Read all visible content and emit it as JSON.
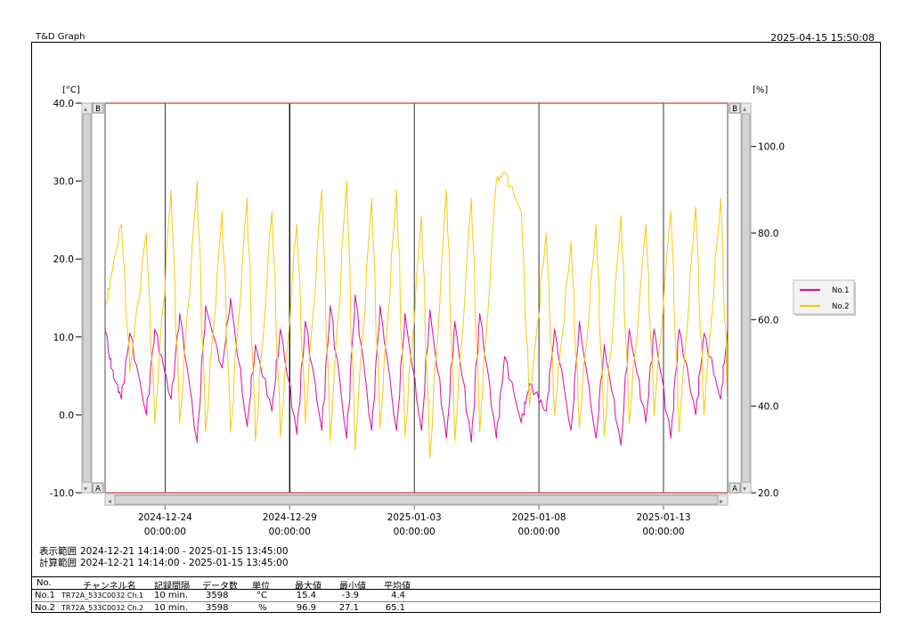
{
  "header": {
    "app_title": "T&D Graph",
    "timestamp": "2025-04-15 15:50:08"
  },
  "chart_data": {
    "type": "line",
    "x_axis": {
      "range": [
        "2024-12-21 14:14:00",
        "2025-01-15 13:45:00"
      ],
      "ticks": [
        {
          "date": "2024-12-24",
          "time": "00:00:00"
        },
        {
          "date": "2024-12-29",
          "time": "00:00:00"
        },
        {
          "date": "2025-01-03",
          "time": "00:00:00"
        },
        {
          "date": "2025-01-08",
          "time": "00:00:00"
        },
        {
          "date": "2025-01-13",
          "time": "00:00:00"
        }
      ]
    },
    "y_left": {
      "unit": "[°C]",
      "ylim": [
        -10,
        40
      ],
      "ticks": [
        "40.0",
        "30.0",
        "20.0",
        "10.0",
        "0.0",
        "-10.0"
      ]
    },
    "y_right": {
      "unit": "[%]",
      "ylim": [
        20,
        110
      ],
      "ticks": [
        "100.0",
        "80.0",
        "60.0",
        "40.0",
        "20.0"
      ]
    },
    "scroll_labels": {
      "top": "B",
      "bottom": "A"
    },
    "legend": {
      "placement": "right"
    },
    "grid": "vertical",
    "series": [
      {
        "name": "No.1",
        "axis": "left",
        "color": "#d9189e",
        "x": [
          "2024-12-21 14:14",
          "2024-12-21 20:00",
          "2024-12-22 06:00",
          "2024-12-22 14:00",
          "2024-12-23 06:00",
          "2024-12-23 14:00",
          "2024-12-24 06:00",
          "2024-12-24 14:00",
          "2024-12-25 07:00",
          "2024-12-25 15:00",
          "2024-12-26 07:00",
          "2024-12-26 15:00",
          "2024-12-27 07:00",
          "2024-12-27 15:00",
          "2024-12-28 07:00",
          "2024-12-28 15:00",
          "2024-12-29 07:00",
          "2024-12-29 15:00",
          "2024-12-30 07:00",
          "2024-12-30 15:00",
          "2024-12-31 07:00",
          "2024-12-31 15:00",
          "2025-01-01 07:00",
          "2025-01-01 15:00",
          "2025-01-02 07:00",
          "2025-01-02 15:00",
          "2025-01-03 07:00",
          "2025-01-03 15:00",
          "2025-01-04 07:00",
          "2025-01-04 15:00",
          "2025-01-05 07:00",
          "2025-01-05 15:00",
          "2025-01-06 07:00",
          "2025-01-06 15:00",
          "2025-01-07 07:00",
          "2025-01-07 15:00",
          "2025-01-08 07:00",
          "2025-01-08 15:00",
          "2025-01-09 07:00",
          "2025-01-09 15:00",
          "2025-01-10 07:00",
          "2025-01-10 15:00",
          "2025-01-11 07:00",
          "2025-01-11 15:00",
          "2025-01-12 07:00",
          "2025-01-12 15:00",
          "2025-01-13 07:00",
          "2025-01-13 15:00",
          "2025-01-14 07:00",
          "2025-01-14 15:00",
          "2025-01-15 07:00",
          "2025-01-15 13:45"
        ],
        "y": [
          11.5,
          6.0,
          2.0,
          10.5,
          0.0,
          11.0,
          2.0,
          13.0,
          -3.5,
          14.0,
          6.0,
          15.0,
          -1.5,
          9.0,
          0.5,
          11.0,
          -2.5,
          12.0,
          -2.0,
          14.0,
          -3.0,
          15.4,
          -2.0,
          14.0,
          -2.0,
          13.0,
          -2.0,
          13.5,
          -3.0,
          12.0,
          -3.5,
          13.0,
          -3.0,
          7.5,
          -1.0,
          4.0,
          0.5,
          11.0,
          -2.0,
          12.0,
          -3.0,
          9.0,
          -3.9,
          11.0,
          -1.0,
          11.0,
          -3.0,
          11.0,
          0.0,
          10.5,
          2.0,
          11.0
        ]
      },
      {
        "name": "No.2",
        "axis": "right",
        "color": "#f5cd19",
        "x": [
          "2024-12-21 14:14",
          "2024-12-21 20:00",
          "2024-12-22 06:00",
          "2024-12-22 14:00",
          "2024-12-23 06:00",
          "2024-12-23 14:00",
          "2024-12-24 06:00",
          "2024-12-24 14:00",
          "2024-12-25 07:00",
          "2024-12-25 15:00",
          "2024-12-26 07:00",
          "2024-12-26 15:00",
          "2024-12-27 07:00",
          "2024-12-27 15:00",
          "2024-12-28 07:00",
          "2024-12-28 15:00",
          "2024-12-29 07:00",
          "2024-12-29 15:00",
          "2024-12-30 07:00",
          "2024-12-30 15:00",
          "2024-12-31 07:00",
          "2024-12-31 15:00",
          "2025-01-01 07:00",
          "2025-01-01 15:00",
          "2025-01-02 07:00",
          "2025-01-02 15:00",
          "2025-01-03 07:00",
          "2025-01-03 15:00",
          "2025-01-04 07:00",
          "2025-01-04 15:00",
          "2025-01-05 07:00",
          "2025-01-05 15:00",
          "2025-01-06 07:00",
          "2025-01-06 15:00",
          "2025-01-07 07:00",
          "2025-01-07 15:00",
          "2025-01-08 07:00",
          "2025-01-08 15:00",
          "2025-01-09 07:00",
          "2025-01-09 15:00",
          "2025-01-10 07:00",
          "2025-01-10 15:00",
          "2025-01-11 07:00",
          "2025-01-11 15:00",
          "2025-01-12 07:00",
          "2025-01-12 15:00",
          "2025-01-13 07:00",
          "2025-01-13 15:00",
          "2025-01-14 07:00",
          "2025-01-14 15:00",
          "2025-01-15 07:00",
          "2025-01-15 13:45"
        ],
        "y": [
          62,
          70,
          82,
          48,
          80,
          36,
          90,
          36,
          92,
          34,
          85,
          34,
          88,
          32,
          85,
          33,
          82,
          36,
          90,
          32,
          92,
          30,
          88,
          35,
          90,
          33,
          84,
          28,
          90,
          32,
          88,
          34,
          92,
          94,
          85,
          40,
          80,
          38,
          78,
          35,
          82,
          33,
          84,
          36,
          82,
          38,
          85,
          34,
          86,
          38,
          88,
          42
        ]
      }
    ]
  },
  "info": {
    "display_label": "表示範囲",
    "display_value": "2024-12-21 14:14:00 - 2025-01-15 13:45:00",
    "calc_label": "計算範囲",
    "calc_value": "2024-12-21 14:14:00 - 2025-01-15 13:45:00"
  },
  "stats": {
    "headers": [
      "No.",
      "チャンネル名",
      "記録間隔",
      "データ数",
      "単位",
      "最大値",
      "最小値",
      "平均値"
    ],
    "rows": [
      [
        "No.1",
        "TR72A_533C0032 Ch.1",
        "10 min.",
        "3598",
        "°C",
        "15.4",
        "-3.9",
        "4.4"
      ],
      [
        "No.2",
        "TR72A_533C0032 Ch.2",
        "10 min.",
        "3598",
        "%",
        "96.9",
        "27.1",
        "65.1"
      ]
    ]
  }
}
